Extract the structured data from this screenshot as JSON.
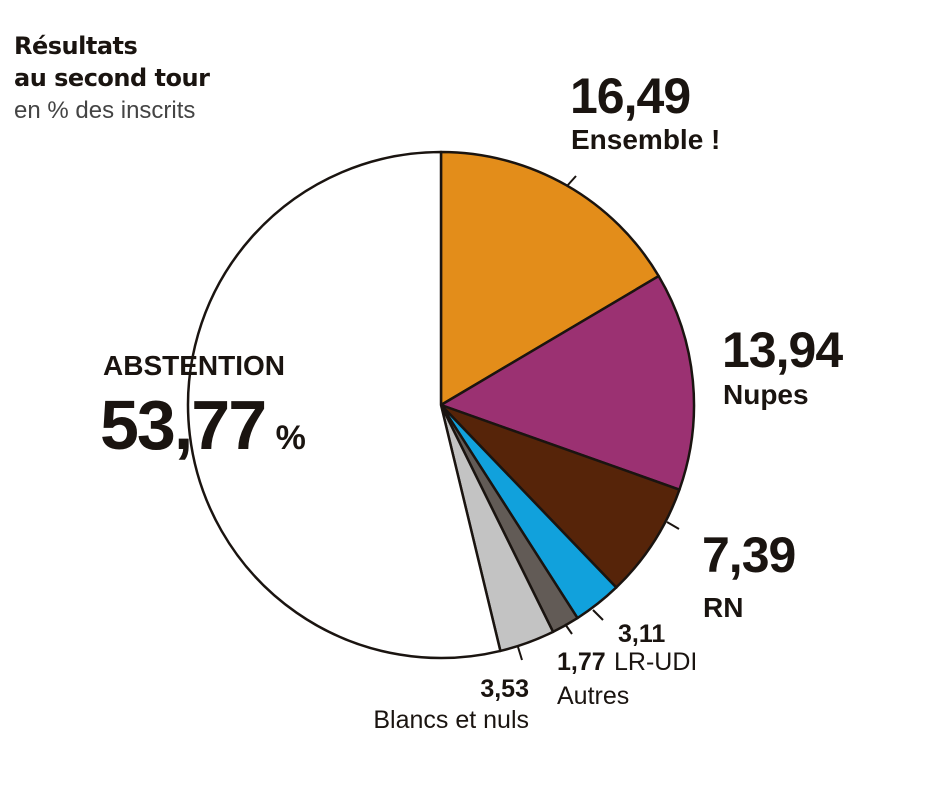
{
  "header": {
    "title_line1": "Résultats",
    "title_line2": "au second tour",
    "subtitle": "en % des inscrits"
  },
  "chart_data": {
    "type": "pie",
    "title": "Résultats au second tour",
    "subtitle": "en % des inscrits",
    "slices": [
      {
        "name": "Ensemble !",
        "value": 16.49,
        "label": "16,49",
        "color": "#e38d1a"
      },
      {
        "name": "Nupes",
        "value": 13.94,
        "label": "13,94",
        "color": "#9b3172"
      },
      {
        "name": "RN",
        "value": 7.39,
        "label": "7,39",
        "color": "#562409"
      },
      {
        "name": "LR-UDI",
        "value": 3.11,
        "label": "3,11",
        "color": "#11a1dc"
      },
      {
        "name": "Autres",
        "value": 1.77,
        "label": "1,77",
        "color": "#625b56"
      },
      {
        "name": "Blancs et nuls",
        "value": 3.53,
        "label": "3,53",
        "color": "#c3c3c3"
      },
      {
        "name": "ABSTENTION",
        "value": 53.77,
        "label": "53,77",
        "unit": "%",
        "color": "#ffffff"
      }
    ]
  }
}
